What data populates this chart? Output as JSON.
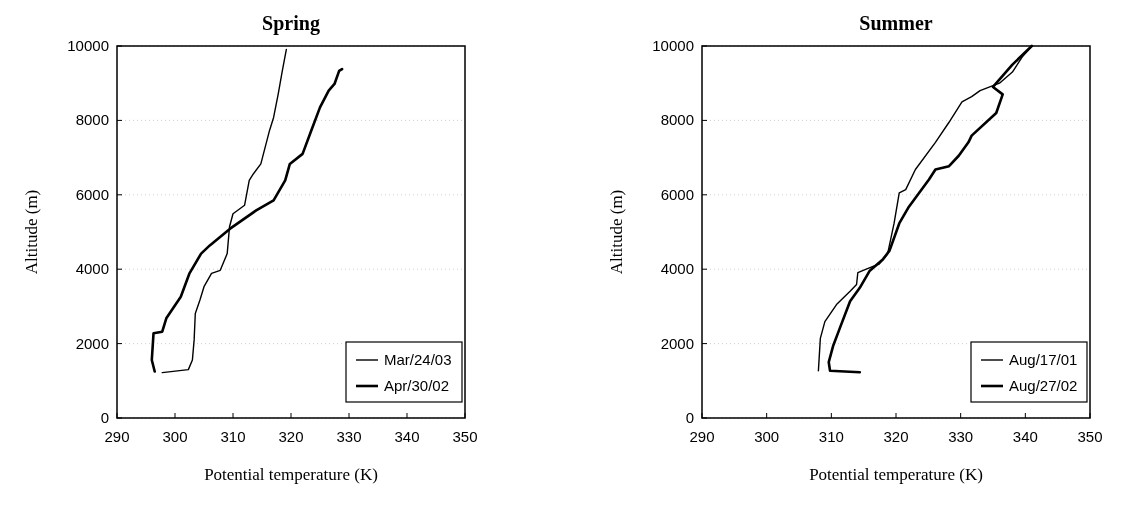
{
  "chart_data": [
    {
      "type": "line",
      "title": "Spring",
      "xlabel": "Potential temperature (K)",
      "ylabel": "Altitude (m)",
      "xlim": [
        290,
        350
      ],
      "xticks": [
        290,
        300,
        310,
        320,
        330,
        340,
        350
      ],
      "ylim": [
        0,
        10000
      ],
      "yticks": [
        0,
        2000,
        4000,
        6000,
        8000,
        10000
      ],
      "grid": "y",
      "legend": "bottom right",
      "series": [
        {
          "name": "Mar/24/03",
          "color": "#000000",
          "x": [
            297.8,
            302.3,
            303,
            303.3,
            303.5,
            304.3,
            305,
            306.3,
            307.8,
            309,
            309.4,
            310,
            312,
            312.8,
            313.5,
            314.8,
            316.3,
            317,
            317.8,
            318.5,
            319.2
          ],
          "values": [
            1220,
            1300,
            1560,
            2100,
            2810,
            3170,
            3530,
            3890,
            3970,
            4420,
            5140,
            5490,
            5720,
            6390,
            6560,
            6830,
            7730,
            8080,
            8710,
            9330,
            9910
          ]
        },
        {
          "name": "Apr/30/02",
          "color": "#000000",
          "x": [
            296.5,
            296,
            296.3,
            297.8,
            298.5,
            301,
            302.5,
            304.5,
            306,
            309.5,
            314,
            317,
            319,
            319.8,
            322,
            323.5,
            325,
            326.5,
            327.5,
            328.3,
            328.8
          ],
          "values": [
            1250,
            1560,
            2280,
            2320,
            2680,
            3260,
            3890,
            4420,
            4640,
            5090,
            5580,
            5850,
            6390,
            6830,
            7100,
            7730,
            8350,
            8800,
            8980,
            9330,
            9380
          ]
        }
      ]
    },
    {
      "type": "line",
      "title": "Summer",
      "xlabel": "Potential temperature (K)",
      "ylabel": "Altitude (m)",
      "xlim": [
        290,
        350
      ],
      "xticks": [
        290,
        300,
        310,
        320,
        330,
        340,
        350
      ],
      "ylim": [
        0,
        10000
      ],
      "yticks": [
        0,
        2000,
        4000,
        6000,
        8000,
        10000
      ],
      "grid": "y",
      "legend": "bottom right",
      "series": [
        {
          "name": "Aug/17/01",
          "color": "#000000",
          "x": [
            308,
            308.3,
            309,
            310.8,
            312.9,
            313.9,
            314.1,
            315.4,
            317.4,
            318.7,
            319.7,
            320.5,
            321.5,
            323,
            326.1,
            328.2,
            330.2,
            331.7,
            333,
            336,
            338,
            339.5,
            341
          ],
          "values": [
            1270,
            2140,
            2590,
            3050,
            3410,
            3590,
            3910,
            4000,
            4140,
            4410,
            5230,
            6050,
            6140,
            6680,
            7410,
            7950,
            8500,
            8640,
            8800,
            9000,
            9300,
            9700,
            10000
          ]
        },
        {
          "name": "Aug/27/02",
          "color": "#000000",
          "x": [
            314.4,
            309.8,
            309.6,
            310.3,
            311.3,
            312.9,
            314.4,
            315.9,
            318,
            319,
            320.5,
            322,
            325.1,
            326.1,
            328.2,
            329.7,
            331.2,
            331.7,
            335.5,
            336.5,
            335,
            338,
            341
          ],
          "values": [
            1230,
            1270,
            1500,
            1950,
            2410,
            3140,
            3500,
            3950,
            4270,
            4500,
            5230,
            5680,
            6410,
            6680,
            6770,
            7050,
            7410,
            7590,
            8200,
            8700,
            8900,
            9500,
            10000
          ]
        }
      ]
    }
  ]
}
